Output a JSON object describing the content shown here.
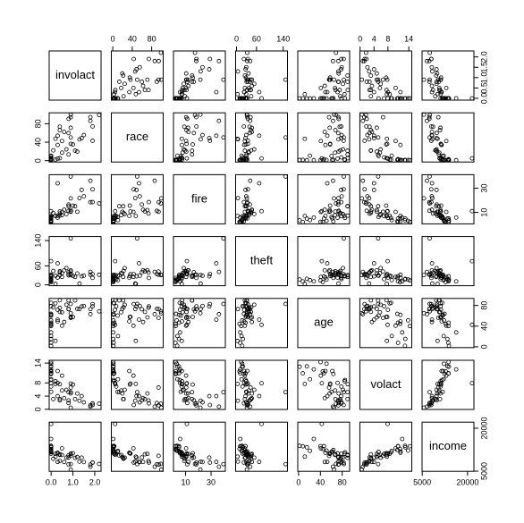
{
  "chart_data": {
    "type": "pairs",
    "point_color": "#000000",
    "variables": [
      {
        "name": "involact",
        "values": [
          0.0,
          0.1,
          1.2,
          0.5,
          0.7,
          0.3,
          0.0,
          0.0,
          0.4,
          1.1,
          1.9,
          0.0,
          0.0,
          0.0,
          0.0,
          0.0,
          0.0,
          0.0,
          0.2,
          0.8,
          0.8,
          1.8,
          1.8,
          0.9,
          1.9,
          1.5,
          0.6,
          0.3,
          1.3,
          0.9,
          0.4,
          0.0,
          0.0,
          1.4,
          2.2,
          0.8,
          0.0,
          0.9,
          0.9,
          0.4,
          0.9,
          0.0,
          0.5,
          1.0,
          0.2,
          0.3,
          0.0
        ],
        "lim": [
          -0.088,
          2.288
        ],
        "xticks": [
          {
            "value": 0,
            "label": "0.0"
          },
          {
            "value": 1,
            "label": "1.0"
          },
          {
            "value": 2,
            "label": "2.0"
          }
        ],
        "yticks": [
          {
            "value": 0,
            "label": "0.0"
          },
          {
            "value": 0.5,
            "label": "0.5"
          },
          {
            "value": 1,
            "label": "1.0"
          },
          {
            "value": 1.5,
            "label": "1.5"
          },
          {
            "value": 2,
            "label": "2.0"
          }
        ]
      },
      {
        "name": "race",
        "values": [
          10.0,
          22.2,
          19.6,
          17.3,
          24.5,
          54.0,
          4.9,
          7.1,
          5.3,
          21.5,
          43.1,
          1.1,
          1.0,
          1.7,
          1.6,
          1.5,
          1.8,
          1.0,
          2.5,
          13.4,
          59.8,
          94.4,
          86.2,
          50.2,
          74.2,
          55.5,
          62.3,
          4.4,
          46.2,
          99.7,
          73.5,
          10.7,
          1.5,
          48.8,
          98.9,
          90.6,
          1.4,
          71.2,
          94.1,
          66.1,
          36.4,
          1.0,
          42.5,
          35.1,
          47.4,
          34.0,
          3.1
        ],
        "lim": [
          -2.948,
          103.648
        ],
        "xticks": [
          0,
          40,
          80
        ],
        "yticks": [
          0,
          40,
          80
        ]
      },
      {
        "name": "fire",
        "values": [
          6.2,
          9.5,
          10.5,
          7.7,
          8.6,
          34.1,
          11.0,
          6.9,
          7.3,
          15.1,
          29.1,
          2.2,
          5.7,
          2.0,
          2.5,
          3.0,
          5.4,
          2.2,
          7.2,
          15.1,
          16.5,
          18.4,
          36.2,
          39.7,
          18.5,
          23.3,
          12.2,
          5.6,
          21.8,
          21.6,
          9.0,
          3.6,
          5.0,
          28.6,
          17.4,
          11.3,
          3.4,
          11.9,
          10.5,
          10.7,
          10.8,
          4.8,
          10.4,
          15.6,
          7.0,
          7.1,
          4.9
        ],
        "lim": [
          0.492,
          41.208
        ],
        "xticks": [
          10,
          30
        ],
        "yticks": [
          10,
          30
        ]
      },
      {
        "name": "theft",
        "values": [
          29,
          44,
          36,
          37,
          53,
          68,
          75,
          18,
          31,
          25,
          34,
          14,
          11,
          11,
          22,
          17,
          27,
          9,
          29,
          30,
          40,
          32,
          41,
          147,
          22,
          29,
          46,
          23,
          4,
          31,
          39,
          15,
          32,
          27,
          32,
          34,
          17,
          46,
          42,
          43,
          34,
          19,
          25,
          28,
          3,
          23,
          27
        ],
        "lim": [
          -2.76,
          152.76
        ],
        "xticks": [
          0,
          60,
          140
        ],
        "yticks": [
          0,
          60,
          140
        ]
      },
      {
        "name": "age",
        "values": [
          60.4,
          76.5,
          73.5,
          66.9,
          81.4,
          52.6,
          42.6,
          78.5,
          90.1,
          89.8,
          82.7,
          40.2,
          27.9,
          7.7,
          63.8,
          51.2,
          85.1,
          44.4,
          84.2,
          89.8,
          72.7,
          72.9,
          63.1,
          83.0,
          78.3,
          79.0,
          48.0,
          71.5,
          73.1,
          65.0,
          75.4,
          20.8,
          61.8,
          78.1,
          68.6,
          73.4,
          2.0,
          57.0,
          55.9,
          67.5,
          58.0,
          15.2,
          40.8,
          57.8,
          11.4,
          49.2,
          46.6
        ],
        "lim": [
          -1.524,
          93.624
        ],
        "xticks": [
          0,
          40,
          80
        ],
        "yticks": [
          0,
          40,
          80
        ]
      },
      {
        "name": "volact",
        "values": [
          5.3,
          3.1,
          4.8,
          5.7,
          5.9,
          4.0,
          7.9,
          6.9,
          7.6,
          3.1,
          1.3,
          14.3,
          12.1,
          10.9,
          10.7,
          13.8,
          8.9,
          11.5,
          8.5,
          5.2,
          2.7,
          1.2,
          0.8,
          5.2,
          1.8,
          2.1,
          3.4,
          8.0,
          2.6,
          0.5,
          2.7,
          9.1,
          11.6,
          4.0,
          1.7,
          1.9,
          12.9,
          4.8,
          6.6,
          3.1,
          7.8,
          13.0,
          10.2,
          7.5,
          7.7,
          11.6,
          10.9
        ],
        "lim": [
          -0.052,
          14.852
        ],
        "xticks": [
          0,
          4,
          8,
          14
        ],
        "yticks": [
          0,
          4,
          8,
          14
        ]
      },
      {
        "name": "income",
        "values": [
          11744,
          9323,
          9948,
          10656,
          9730,
          8231,
          21480,
          11104,
          10694,
          9631,
          7995,
          13722,
          16250,
          13686,
          12405,
          12198,
          11600,
          12765,
          11084,
          10510,
          9784,
          7342,
          6565,
          7459,
          8014,
          8177,
          8212,
          11230,
          8330,
          5583,
          8564,
          12102,
          11876,
          9742,
          7520,
          7388,
          13842,
          11040,
          10332,
          10908,
          11156,
          13323,
          12960,
          11260,
          10080,
          11428,
          13731
        ],
        "lim": [
          4947.12,
          22115.88
        ],
        "xticks": [
          5000,
          20000
        ],
        "yticks": [
          5000,
          20000
        ]
      }
    ]
  }
}
